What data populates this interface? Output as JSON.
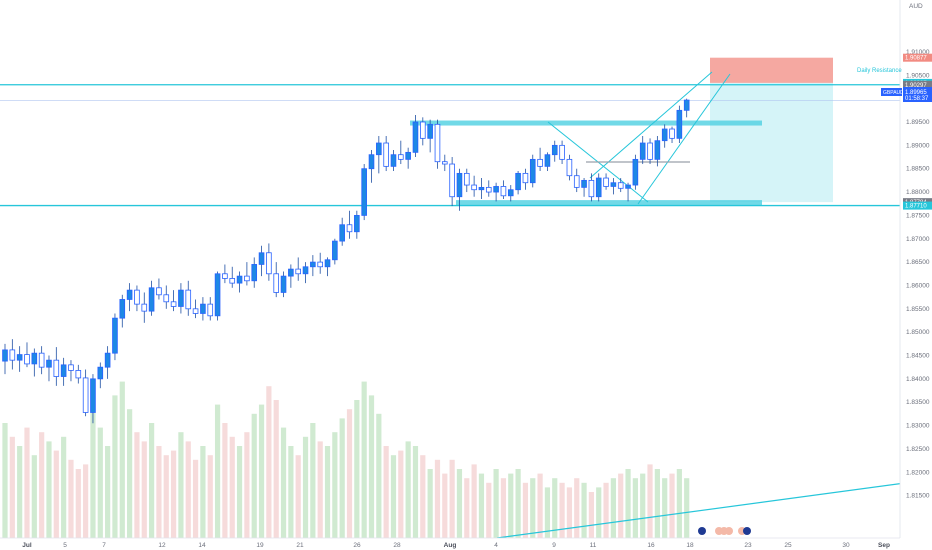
{
  "symbol": "GBPAUD",
  "currency": "AUD",
  "price_label": {
    "symbol": "GBPAUD",
    "price": "1.89965",
    "countdown": "01:58:37"
  },
  "annotations": {
    "daily_resistance": "Daily Resistance"
  },
  "colors": {
    "up": "#2962ff",
    "up_fill": "#1e88e5",
    "down_fill": "#ffffff",
    "wick": "#1e4fa3",
    "line": "#26c6da",
    "zone": "#4dd0e1",
    "stop": "#f28b82",
    "target": "#b2ebf2",
    "vol_up": "#c8e6c9",
    "vol_down": "#f5d5d5"
  },
  "icons": [
    "flag-uk-icon",
    "flag-au-icon",
    "flag-au-icon",
    "flag-uk-icon",
    "flag-au-icon",
    "flag-uk-icon"
  ],
  "chart_data": {
    "type": "candlestick",
    "ylim": [
      1.80999,
      1.91877
    ],
    "y_ticks": [
      "1.91000",
      "1.90500",
      "1.90000",
      "1.89500",
      "1.89000",
      "1.88500",
      "1.88000",
      "1.87500",
      "1.87000",
      "1.86500",
      "1.86000",
      "1.85500",
      "1.85000",
      "1.84500",
      "1.84000",
      "1.83500",
      "1.83000",
      "1.82500",
      "1.82000",
      "1.81500"
    ],
    "x_ticks": [
      "Jul",
      "5",
      "7",
      "12",
      "14",
      "19",
      "21",
      "26",
      "28",
      "Aug",
      "4",
      "9",
      "11",
      "16",
      "18",
      "23",
      "25",
      "30",
      "Sep"
    ],
    "price_tags": [
      {
        "value": "1.90877",
        "color": "#f28b82"
      },
      {
        "value": "1.90337",
        "color": "#26c6da"
      },
      {
        "value": "1.90297",
        "color": "#787b86"
      },
      {
        "value": "1.87784",
        "color": "#787b86"
      },
      {
        "value": "1.87710",
        "color": "#26c6da"
      }
    ],
    "levels": {
      "daily_resistance": 1.90297,
      "support": 1.8771,
      "entry": 1.90337,
      "stop": 1.90877,
      "target": 1.87784,
      "range_high": 1.89478,
      "range_low": 1.87774
    },
    "candles": [
      {
        "o": 1.8438,
        "h": 1.8475,
        "l": 1.841,
        "c": 1.8462
      },
      {
        "o": 1.8462,
        "h": 1.8485,
        "l": 1.842,
        "c": 1.844
      },
      {
        "o": 1.844,
        "h": 1.847,
        "l": 1.8415,
        "c": 1.8452
      },
      {
        "o": 1.8452,
        "h": 1.8478,
        "l": 1.8425,
        "c": 1.8432
      },
      {
        "o": 1.8432,
        "h": 1.8465,
        "l": 1.8405,
        "c": 1.8455
      },
      {
        "o": 1.8455,
        "h": 1.847,
        "l": 1.841,
        "c": 1.8425
      },
      {
        "o": 1.8425,
        "h": 1.845,
        "l": 1.8395,
        "c": 1.844
      },
      {
        "o": 1.844,
        "h": 1.8468,
        "l": 1.8385,
        "c": 1.8405
      },
      {
        "o": 1.8405,
        "h": 1.8445,
        "l": 1.8385,
        "c": 1.843
      },
      {
        "o": 1.843,
        "h": 1.844,
        "l": 1.8395,
        "c": 1.8418
      },
      {
        "o": 1.8418,
        "h": 1.843,
        "l": 1.839,
        "c": 1.8402
      },
      {
        "o": 1.8402,
        "h": 1.842,
        "l": 1.832,
        "c": 1.8328
      },
      {
        "o": 1.8328,
        "h": 1.841,
        "l": 1.8305,
        "c": 1.84
      },
      {
        "o": 1.84,
        "h": 1.8435,
        "l": 1.838,
        "c": 1.8425
      },
      {
        "o": 1.8425,
        "h": 1.847,
        "l": 1.84,
        "c": 1.8455
      },
      {
        "o": 1.8455,
        "h": 1.854,
        "l": 1.844,
        "c": 1.853
      },
      {
        "o": 1.853,
        "h": 1.858,
        "l": 1.851,
        "c": 1.857
      },
      {
        "o": 1.857,
        "h": 1.8605,
        "l": 1.8545,
        "c": 1.859
      },
      {
        "o": 1.859,
        "h": 1.86,
        "l": 1.8545,
        "c": 1.856
      },
      {
        "o": 1.856,
        "h": 1.8585,
        "l": 1.852,
        "c": 1.8545
      },
      {
        "o": 1.8545,
        "h": 1.861,
        "l": 1.8535,
        "c": 1.8595
      },
      {
        "o": 1.8595,
        "h": 1.8615,
        "l": 1.857,
        "c": 1.858
      },
      {
        "o": 1.858,
        "h": 1.86,
        "l": 1.855,
        "c": 1.8565
      },
      {
        "o": 1.8565,
        "h": 1.859,
        "l": 1.8545,
        "c": 1.8555
      },
      {
        "o": 1.8555,
        "h": 1.8605,
        "l": 1.854,
        "c": 1.859
      },
      {
        "o": 1.859,
        "h": 1.861,
        "l": 1.8535,
        "c": 1.855
      },
      {
        "o": 1.855,
        "h": 1.857,
        "l": 1.853,
        "c": 1.854
      },
      {
        "o": 1.854,
        "h": 1.8575,
        "l": 1.8525,
        "c": 1.856
      },
      {
        "o": 1.856,
        "h": 1.8575,
        "l": 1.8525,
        "c": 1.8535
      },
      {
        "o": 1.8535,
        "h": 1.863,
        "l": 1.8525,
        "c": 1.8625
      },
      {
        "o": 1.8625,
        "h": 1.8645,
        "l": 1.8605,
        "c": 1.8615
      },
      {
        "o": 1.8615,
        "h": 1.864,
        "l": 1.8595,
        "c": 1.8605
      },
      {
        "o": 1.8605,
        "h": 1.863,
        "l": 1.8585,
        "c": 1.862
      },
      {
        "o": 1.862,
        "h": 1.865,
        "l": 1.86,
        "c": 1.861
      },
      {
        "o": 1.861,
        "h": 1.866,
        "l": 1.8595,
        "c": 1.8645
      },
      {
        "o": 1.8645,
        "h": 1.8685,
        "l": 1.862,
        "c": 1.867
      },
      {
        "o": 1.867,
        "h": 1.869,
        "l": 1.861,
        "c": 1.8625
      },
      {
        "o": 1.8625,
        "h": 1.865,
        "l": 1.8575,
        "c": 1.8585
      },
      {
        "o": 1.8585,
        "h": 1.863,
        "l": 1.8575,
        "c": 1.862
      },
      {
        "o": 1.862,
        "h": 1.8645,
        "l": 1.8595,
        "c": 1.8635
      },
      {
        "o": 1.8635,
        "h": 1.866,
        "l": 1.861,
        "c": 1.8625
      },
      {
        "o": 1.8625,
        "h": 1.865,
        "l": 1.8605,
        "c": 1.864
      },
      {
        "o": 1.864,
        "h": 1.8665,
        "l": 1.862,
        "c": 1.865
      },
      {
        "o": 1.865,
        "h": 1.867,
        "l": 1.8625,
        "c": 1.864
      },
      {
        "o": 1.864,
        "h": 1.866,
        "l": 1.862,
        "c": 1.8655
      },
      {
        "o": 1.8655,
        "h": 1.87,
        "l": 1.8645,
        "c": 1.8695
      },
      {
        "o": 1.8695,
        "h": 1.8745,
        "l": 1.8685,
        "c": 1.873
      },
      {
        "o": 1.873,
        "h": 1.876,
        "l": 1.87,
        "c": 1.8715
      },
      {
        "o": 1.8715,
        "h": 1.876,
        "l": 1.87,
        "c": 1.875
      },
      {
        "o": 1.875,
        "h": 1.886,
        "l": 1.874,
        "c": 1.885
      },
      {
        "o": 1.885,
        "h": 1.889,
        "l": 1.882,
        "c": 1.888
      },
      {
        "o": 1.888,
        "h": 1.892,
        "l": 1.884,
        "c": 1.8905
      },
      {
        "o": 1.8905,
        "h": 1.892,
        "l": 1.8845,
        "c": 1.8855
      },
      {
        "o": 1.8855,
        "h": 1.889,
        "l": 1.8845,
        "c": 1.888
      },
      {
        "o": 1.888,
        "h": 1.891,
        "l": 1.886,
        "c": 1.887
      },
      {
        "o": 1.887,
        "h": 1.8895,
        "l": 1.885,
        "c": 1.8885
      },
      {
        "o": 1.8885,
        "h": 1.8965,
        "l": 1.8875,
        "c": 1.895
      },
      {
        "o": 1.895,
        "h": 1.896,
        "l": 1.89,
        "c": 1.8915
      },
      {
        "o": 1.8915,
        "h": 1.8955,
        "l": 1.8885,
        "c": 1.8945
      },
      {
        "o": 1.8945,
        "h": 1.8955,
        "l": 1.885,
        "c": 1.8865
      },
      {
        "o": 1.8865,
        "h": 1.888,
        "l": 1.8845,
        "c": 1.886
      },
      {
        "o": 1.886,
        "h": 1.8875,
        "l": 1.877,
        "c": 1.879
      },
      {
        "o": 1.879,
        "h": 1.885,
        "l": 1.876,
        "c": 1.884
      },
      {
        "o": 1.884,
        "h": 1.885,
        "l": 1.88,
        "c": 1.8815
      },
      {
        "o": 1.8815,
        "h": 1.8835,
        "l": 1.879,
        "c": 1.8805
      },
      {
        "o": 1.8805,
        "h": 1.883,
        "l": 1.8785,
        "c": 1.881
      },
      {
        "o": 1.881,
        "h": 1.8825,
        "l": 1.879,
        "c": 1.88
      },
      {
        "o": 1.88,
        "h": 1.882,
        "l": 1.878,
        "c": 1.8812
      },
      {
        "o": 1.8812,
        "h": 1.8825,
        "l": 1.8785,
        "c": 1.8792
      },
      {
        "o": 1.8792,
        "h": 1.8815,
        "l": 1.878,
        "c": 1.8805
      },
      {
        "o": 1.8805,
        "h": 1.8845,
        "l": 1.8795,
        "c": 1.884
      },
      {
        "o": 1.884,
        "h": 1.885,
        "l": 1.8805,
        "c": 1.882
      },
      {
        "o": 1.882,
        "h": 1.888,
        "l": 1.881,
        "c": 1.887
      },
      {
        "o": 1.887,
        "h": 1.8895,
        "l": 1.8845,
        "c": 1.8855
      },
      {
        "o": 1.8855,
        "h": 1.8885,
        "l": 1.8845,
        "c": 1.888
      },
      {
        "o": 1.888,
        "h": 1.891,
        "l": 1.8865,
        "c": 1.89
      },
      {
        "o": 1.89,
        "h": 1.891,
        "l": 1.886,
        "c": 1.887
      },
      {
        "o": 1.887,
        "h": 1.888,
        "l": 1.8825,
        "c": 1.8835
      },
      {
        "o": 1.8835,
        "h": 1.885,
        "l": 1.88,
        "c": 1.881
      },
      {
        "o": 1.881,
        "h": 1.883,
        "l": 1.879,
        "c": 1.8825
      },
      {
        "o": 1.8825,
        "h": 1.884,
        "l": 1.878,
        "c": 1.879
      },
      {
        "o": 1.879,
        "h": 1.884,
        "l": 1.878,
        "c": 1.883
      },
      {
        "o": 1.883,
        "h": 1.884,
        "l": 1.8805,
        "c": 1.8812
      },
      {
        "o": 1.8812,
        "h": 1.883,
        "l": 1.8795,
        "c": 1.882
      },
      {
        "o": 1.882,
        "h": 1.883,
        "l": 1.88,
        "c": 1.8808
      },
      {
        "o": 1.8808,
        "h": 1.882,
        "l": 1.878,
        "c": 1.8815
      },
      {
        "o": 1.8815,
        "h": 1.888,
        "l": 1.8805,
        "c": 1.887
      },
      {
        "o": 1.887,
        "h": 1.892,
        "l": 1.886,
        "c": 1.8905
      },
      {
        "o": 1.8905,
        "h": 1.8915,
        "l": 1.886,
        "c": 1.887
      },
      {
        "o": 1.887,
        "h": 1.892,
        "l": 1.8855,
        "c": 1.891
      },
      {
        "o": 1.891,
        "h": 1.8945,
        "l": 1.8895,
        "c": 1.8935
      },
      {
        "o": 1.8935,
        "h": 1.894,
        "l": 1.8905,
        "c": 1.8915
      },
      {
        "o": 1.8915,
        "h": 1.8985,
        "l": 1.8905,
        "c": 1.8975
      },
      {
        "o": 1.8975,
        "h": 1.9,
        "l": 1.896,
        "c": 1.8997
      }
    ],
    "volume": [
      0.5,
      0.44,
      0.4,
      0.48,
      0.36,
      0.46,
      0.42,
      0.38,
      0.44,
      0.34,
      0.3,
      0.32,
      0.56,
      0.48,
      0.4,
      0.62,
      0.68,
      0.56,
      0.46,
      0.42,
      0.5,
      0.4,
      0.36,
      0.38,
      0.46,
      0.42,
      0.34,
      0.4,
      0.36,
      0.58,
      0.5,
      0.44,
      0.4,
      0.46,
      0.54,
      0.58,
      0.66,
      0.6,
      0.48,
      0.4,
      0.36,
      0.44,
      0.5,
      0.42,
      0.4,
      0.46,
      0.52,
      0.56,
      0.6,
      0.68,
      0.62,
      0.54,
      0.4,
      0.36,
      0.38,
      0.42,
      0.4,
      0.36,
      0.3,
      0.34,
      0.28,
      0.34,
      0.3,
      0.26,
      0.32,
      0.28,
      0.24,
      0.3,
      0.26,
      0.28,
      0.3,
      0.24,
      0.26,
      0.28,
      0.22,
      0.26,
      0.24,
      0.22,
      0.26,
      0.24,
      0.2,
      0.22,
      0.24,
      0.26,
      0.28,
      0.3,
      0.26,
      0.28,
      0.32,
      0.3,
      0.26,
      0.28,
      0.3,
      0.26
    ]
  }
}
